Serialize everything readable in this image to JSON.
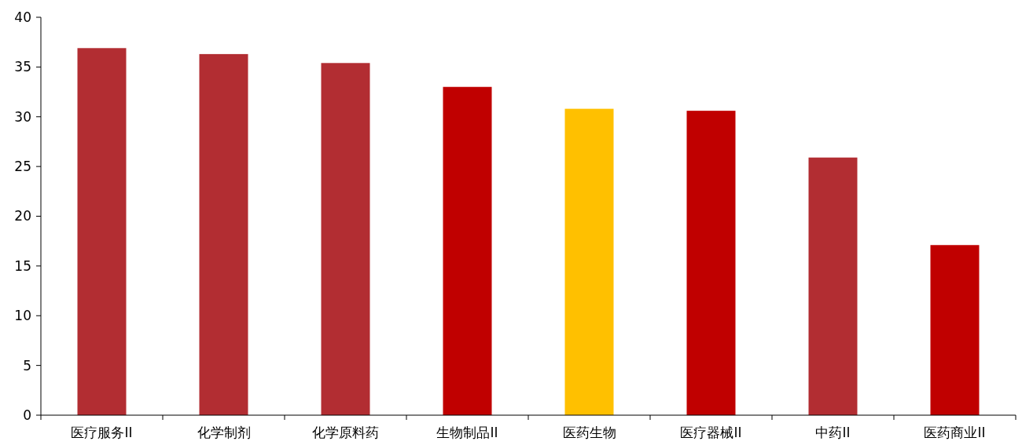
{
  "chart_data": {
    "type": "bar",
    "categories": [
      "医疗服务II",
      "化学制剂",
      "化学原料药",
      "生物制品II",
      "医药生物",
      "医疗器械II",
      "中药II",
      "医药商业II"
    ],
    "values": [
      36.9,
      36.3,
      35.4,
      33.0,
      30.8,
      30.6,
      25.9,
      17.1
    ],
    "colors": [
      "#b22d32",
      "#b22d32",
      "#b22d32",
      "#c00000",
      "#ffc000",
      "#c00000",
      "#b22d32",
      "#c00000"
    ],
    "ylim": [
      0,
      40
    ],
    "yticks": [
      0,
      5,
      10,
      15,
      20,
      25,
      30,
      35,
      40
    ],
    "grid": false
  }
}
